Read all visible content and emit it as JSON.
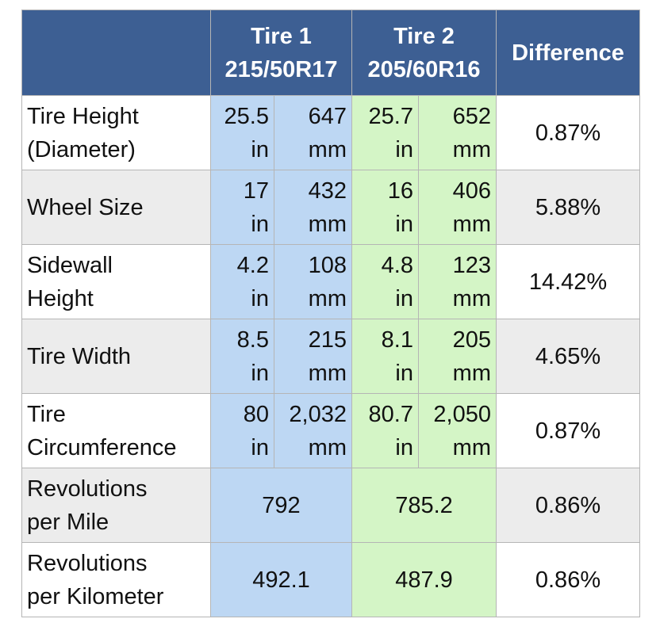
{
  "table": {
    "header": {
      "tire1": {
        "name": "Tire 1",
        "size": "215/50R17"
      },
      "tire2": {
        "name": "Tire 2",
        "size": "205/60R16"
      },
      "difference": "Difference"
    },
    "rows": [
      {
        "label": [
          "Tire Height",
          "(Diameter)"
        ],
        "tire1": [
          {
            "value": "25.5",
            "unit": "in"
          },
          {
            "value": "647",
            "unit": "mm"
          }
        ],
        "tire2": [
          {
            "value": "25.7",
            "unit": "in"
          },
          {
            "value": "652",
            "unit": "mm"
          }
        ],
        "difference": "0.87%"
      },
      {
        "label": [
          "Wheel Size"
        ],
        "tire1": [
          {
            "value": "17",
            "unit": "in"
          },
          {
            "value": "432",
            "unit": "mm"
          }
        ],
        "tire2": [
          {
            "value": "16",
            "unit": "in"
          },
          {
            "value": "406",
            "unit": "mm"
          }
        ],
        "difference": "5.88%"
      },
      {
        "label": [
          "Sidewall",
          "Height"
        ],
        "tire1": [
          {
            "value": "4.2",
            "unit": "in"
          },
          {
            "value": "108",
            "unit": "mm"
          }
        ],
        "tire2": [
          {
            "value": "4.8",
            "unit": "in"
          },
          {
            "value": "123",
            "unit": "mm"
          }
        ],
        "difference": "14.42%"
      },
      {
        "label": [
          "Tire Width"
        ],
        "tire1": [
          {
            "value": "8.5",
            "unit": "in"
          },
          {
            "value": "215",
            "unit": "mm"
          }
        ],
        "tire2": [
          {
            "value": "8.1",
            "unit": "in"
          },
          {
            "value": "205",
            "unit": "mm"
          }
        ],
        "difference": "4.65%"
      },
      {
        "label": [
          "Tire",
          "Circumference"
        ],
        "tire1": [
          {
            "value": "80",
            "unit": "in"
          },
          {
            "value": "2,032",
            "unit": "mm"
          }
        ],
        "tire2": [
          {
            "value": "80.7",
            "unit": "in"
          },
          {
            "value": "2,050",
            "unit": "mm"
          }
        ],
        "difference": "0.87%"
      },
      {
        "label": [
          "Revolutions",
          "per Mile"
        ],
        "tire1": "792",
        "tire2": "785.2",
        "difference": "0.86%"
      },
      {
        "label": [
          "Revolutions",
          "per Kilometer"
        ],
        "tire1": "492.1",
        "tire2": "487.9",
        "difference": "0.86%"
      }
    ]
  }
}
